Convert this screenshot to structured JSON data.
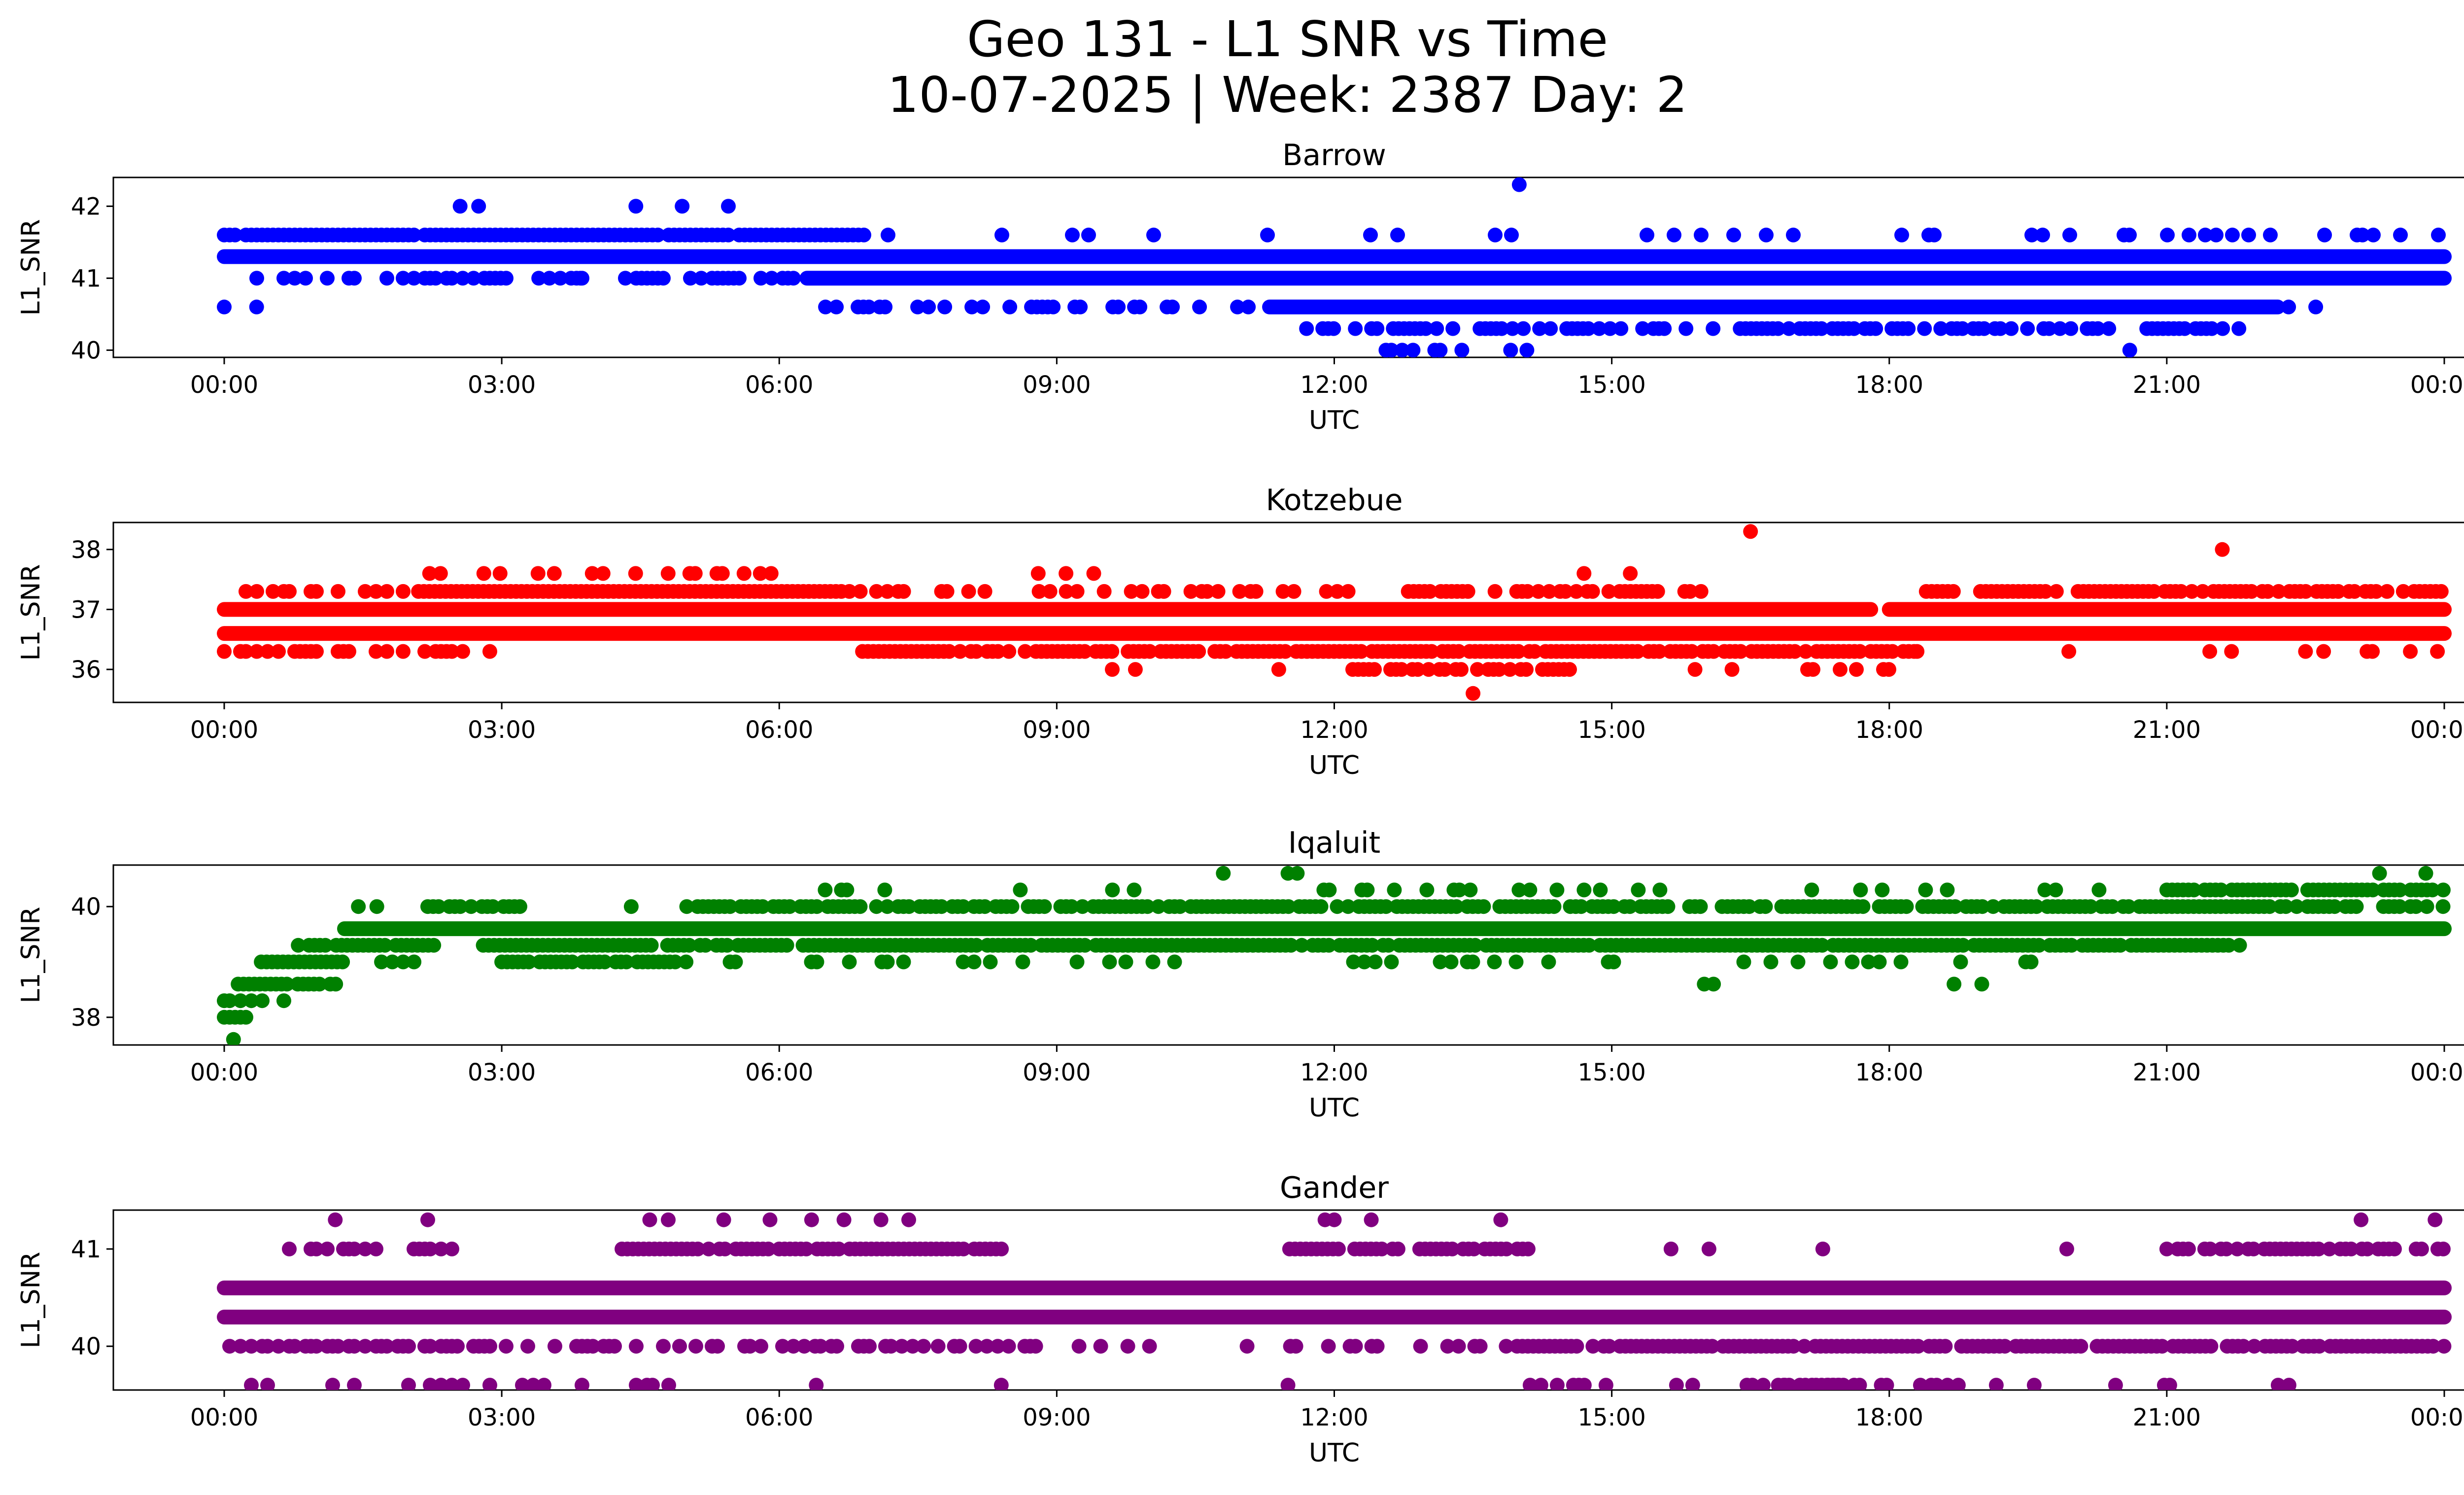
{
  "figure": {
    "title_line1": "Geo 131 - L1 SNR vs Time",
    "title_line2": "10-07-2025 | Week: 2387 Day: 2"
  },
  "chart_data": [
    {
      "type": "scatter",
      "title": "Barrow",
      "xlabel": "UTC",
      "ylabel": "L1_SNR",
      "color": "#0000ff",
      "ylim": [
        39.9,
        42.4
      ],
      "yticks": [
        40,
        41,
        42
      ],
      "xticks": [
        "00:00",
        "03:00",
        "06:00",
        "09:00",
        "12:00",
        "15:00",
        "18:00",
        "21:00",
        "00:00"
      ],
      "bands": [
        {
          "y": 41.3,
          "start_h": 0.0,
          "end_h": 24.0,
          "density": 1.0
        },
        {
          "y": 41.6,
          "start_h": 0.0,
          "end_h": 7.0,
          "density": 0.95
        },
        {
          "y": 41.6,
          "start_h": 7.0,
          "end_h": 24.0,
          "density": 0.12
        },
        {
          "y": 41.0,
          "start_h": 0.0,
          "end_h": 6.3,
          "density": 0.45
        },
        {
          "y": 41.0,
          "start_h": 6.3,
          "end_h": 24.0,
          "density": 1.0
        },
        {
          "y": 40.6,
          "start_h": 6.5,
          "end_h": 11.3,
          "density": 0.35
        },
        {
          "y": 40.6,
          "start_h": 11.3,
          "end_h": 22.2,
          "density": 1.0
        },
        {
          "y": 40.6,
          "start_h": 22.2,
          "end_h": 23.2,
          "density": 0.3
        },
        {
          "y": 40.3,
          "start_h": 11.7,
          "end_h": 21.8,
          "density": 0.55
        },
        {
          "y": 40.0,
          "start_h": 12.5,
          "end_h": 14.2,
          "density": 0.25
        }
      ],
      "points": [
        {
          "t": 0.0,
          "v": 40.6
        },
        {
          "t": 0.35,
          "v": 40.6
        },
        {
          "t": 2.55,
          "v": 42.0
        },
        {
          "t": 2.75,
          "v": 42.0
        },
        {
          "t": 4.45,
          "v": 42.0
        },
        {
          "t": 4.95,
          "v": 42.0
        },
        {
          "t": 5.45,
          "v": 42.0
        },
        {
          "t": 3.4,
          "v": 41.0
        },
        {
          "t": 3.85,
          "v": 41.0
        },
        {
          "t": 14.0,
          "v": 42.3
        },
        {
          "t": 20.6,
          "v": 40.0
        }
      ]
    },
    {
      "type": "scatter",
      "title": "Kotzebue",
      "xlabel": "UTC",
      "ylabel": "L1_SNR",
      "color": "#ff0000",
      "ylim": [
        35.45,
        38.45
      ],
      "yticks": [
        36,
        37,
        38
      ],
      "xticks": [
        "00:00",
        "03:00",
        "06:00",
        "09:00",
        "12:00",
        "15:00",
        "18:00",
        "21:00",
        "00:00"
      ],
      "bands": [
        {
          "y": 37.0,
          "start_h": 0.0,
          "end_h": 17.8,
          "density": 1.0
        },
        {
          "y": 37.0,
          "start_h": 18.0,
          "end_h": 24.0,
          "density": 1.0
        },
        {
          "y": 36.6,
          "start_h": 0.0,
          "end_h": 24.0,
          "density": 1.0
        },
        {
          "y": 36.3,
          "start_h": 0.0,
          "end_h": 2.9,
          "density": 0.55
        },
        {
          "y": 36.3,
          "start_h": 6.9,
          "end_h": 18.3,
          "density": 0.85
        },
        {
          "y": 36.3,
          "start_h": 18.3,
          "end_h": 24.0,
          "density": 0.08
        },
        {
          "y": 37.3,
          "start_h": 0.0,
          "end_h": 2.1,
          "density": 0.3
        },
        {
          "y": 37.3,
          "start_h": 2.1,
          "end_h": 6.7,
          "density": 0.95
        },
        {
          "y": 37.3,
          "start_h": 6.7,
          "end_h": 12.8,
          "density": 0.3
        },
        {
          "y": 37.3,
          "start_h": 12.8,
          "end_h": 16.0,
          "density": 0.7
        },
        {
          "y": 37.3,
          "start_h": 18.4,
          "end_h": 24.0,
          "density": 0.75
        },
        {
          "y": 36.0,
          "start_h": 12.2,
          "end_h": 14.6,
          "density": 0.55
        },
        {
          "y": 36.0,
          "start_h": 17.0,
          "end_h": 18.0,
          "density": 0.5
        },
        {
          "y": 37.6,
          "start_h": 1.4,
          "end_h": 6.1,
          "density": 0.15
        }
      ],
      "points": [
        {
          "t": 9.6,
          "v": 36.0
        },
        {
          "t": 9.85,
          "v": 36.0
        },
        {
          "t": 11.4,
          "v": 36.0
        },
        {
          "t": 15.9,
          "v": 36.0
        },
        {
          "t": 16.3,
          "v": 36.0
        },
        {
          "t": 8.8,
          "v": 37.6
        },
        {
          "t": 9.1,
          "v": 37.6
        },
        {
          "t": 9.4,
          "v": 37.6
        },
        {
          "t": 14.7,
          "v": 37.6
        },
        {
          "t": 15.2,
          "v": 37.6
        },
        {
          "t": 13.5,
          "v": 35.6
        },
        {
          "t": 16.5,
          "v": 38.3
        },
        {
          "t": 21.6,
          "v": 38.0
        },
        {
          "t": 21.7,
          "v": 36.3
        },
        {
          "t": 22.5,
          "v": 36.3
        }
      ]
    },
    {
      "type": "scatter",
      "title": "Iqaluit",
      "xlabel": "UTC",
      "ylabel": "L1_SNR",
      "color": "#008000",
      "ylim": [
        37.5,
        40.75
      ],
      "yticks": [
        38,
        40
      ],
      "xticks": [
        "00:00",
        "03:00",
        "06:00",
        "09:00",
        "12:00",
        "15:00",
        "18:00",
        "21:00",
        "00:00"
      ],
      "bands": [
        {
          "y": 38.0,
          "start_h": 0.0,
          "end_h": 0.3,
          "density": 0.9
        },
        {
          "y": 38.3,
          "start_h": 0.0,
          "end_h": 0.7,
          "density": 0.7
        },
        {
          "y": 38.6,
          "start_h": 0.15,
          "end_h": 1.3,
          "density": 0.9
        },
        {
          "y": 39.0,
          "start_h": 0.4,
          "end_h": 1.3,
          "density": 0.9
        },
        {
          "y": 39.3,
          "start_h": 0.8,
          "end_h": 2.3,
          "density": 0.9
        },
        {
          "y": 39.6,
          "start_h": 1.3,
          "end_h": 24.0,
          "density": 1.0
        },
        {
          "y": 39.3,
          "start_h": 2.8,
          "end_h": 21.8,
          "density": 0.9
        },
        {
          "y": 39.0,
          "start_h": 3.0,
          "end_h": 5.0,
          "density": 0.8
        },
        {
          "y": 39.0,
          "start_h": 5.0,
          "end_h": 20.0,
          "density": 0.12
        },
        {
          "y": 40.0,
          "start_h": 2.2,
          "end_h": 3.2,
          "density": 0.8
        },
        {
          "y": 40.0,
          "start_h": 5.0,
          "end_h": 24.0,
          "density": 0.85
        },
        {
          "y": 40.3,
          "start_h": 5.5,
          "end_h": 21.0,
          "density": 0.12
        },
        {
          "y": 40.3,
          "start_h": 21.0,
          "end_h": 24.0,
          "density": 0.9
        },
        {
          "y": 39.0,
          "start_h": 1.7,
          "end_h": 2.1,
          "density": 0.5
        }
      ],
      "points": [
        {
          "t": 0.1,
          "v": 37.6
        },
        {
          "t": 1.45,
          "v": 40.0
        },
        {
          "t": 1.65,
          "v": 40.0
        },
        {
          "t": 4.4,
          "v": 40.0
        },
        {
          "t": 10.8,
          "v": 40.6
        },
        {
          "t": 11.5,
          "v": 40.6
        },
        {
          "t": 11.6,
          "v": 40.6
        },
        {
          "t": 16.0,
          "v": 38.6
        },
        {
          "t": 16.1,
          "v": 38.6
        },
        {
          "t": 18.7,
          "v": 38.6
        },
        {
          "t": 19.0,
          "v": 38.6
        },
        {
          "t": 23.3,
          "v": 40.6
        },
        {
          "t": 23.8,
          "v": 40.6
        }
      ]
    },
    {
      "type": "scatter",
      "title": "Gander",
      "xlabel": "UTC",
      "ylabel": "L1_SNR",
      "color": "#800080",
      "ylim": [
        39.55,
        41.4
      ],
      "yticks": [
        40,
        41
      ],
      "xticks": [
        "00:00",
        "03:00",
        "06:00",
        "09:00",
        "12:00",
        "15:00",
        "18:00",
        "21:00",
        "00:00"
      ],
      "bands": [
        {
          "y": 40.6,
          "start_h": 0.0,
          "end_h": 24.0,
          "density": 1.0
        },
        {
          "y": 40.3,
          "start_h": 0.0,
          "end_h": 24.0,
          "density": 1.0
        },
        {
          "y": 40.0,
          "start_h": 0.0,
          "end_h": 7.6,
          "density": 0.5
        },
        {
          "y": 40.0,
          "start_h": 7.6,
          "end_h": 13.8,
          "density": 0.25
        },
        {
          "y": 40.0,
          "start_h": 13.8,
          "end_h": 24.0,
          "density": 0.9
        },
        {
          "y": 41.0,
          "start_h": 0.0,
          "end_h": 2.6,
          "density": 0.45
        },
        {
          "y": 41.0,
          "start_h": 4.3,
          "end_h": 8.5,
          "density": 0.9
        },
        {
          "y": 41.0,
          "start_h": 11.4,
          "end_h": 14.1,
          "density": 0.8
        },
        {
          "y": 41.0,
          "start_h": 21.0,
          "end_h": 24.0,
          "density": 0.7
        },
        {
          "y": 41.0,
          "start_h": 14.0,
          "end_h": 21.0,
          "density": 0.04
        },
        {
          "y": 39.6,
          "start_h": 0.0,
          "end_h": 4.9,
          "density": 0.15
        },
        {
          "y": 39.6,
          "start_h": 14.0,
          "end_h": 22.5,
          "density": 0.2
        },
        {
          "y": 39.6,
          "start_h": 16.8,
          "end_h": 18.0,
          "density": 0.7
        }
      ],
      "points": [
        {
          "t": 1.2,
          "v": 41.3
        },
        {
          "t": 2.2,
          "v": 41.3
        },
        {
          "t": 4.6,
          "v": 41.3
        },
        {
          "t": 4.8,
          "v": 41.3
        },
        {
          "t": 5.4,
          "v": 41.3
        },
        {
          "t": 5.9,
          "v": 41.3
        },
        {
          "t": 6.35,
          "v": 41.3
        },
        {
          "t": 6.7,
          "v": 41.3
        },
        {
          "t": 7.1,
          "v": 41.3
        },
        {
          "t": 7.4,
          "v": 41.3
        },
        {
          "t": 11.9,
          "v": 41.3
        },
        {
          "t": 12.0,
          "v": 41.3
        },
        {
          "t": 12.4,
          "v": 41.3
        },
        {
          "t": 13.8,
          "v": 41.3
        },
        {
          "t": 23.1,
          "v": 41.3
        },
        {
          "t": 23.9,
          "v": 41.3
        },
        {
          "t": 6.4,
          "v": 39.6
        },
        {
          "t": 8.4,
          "v": 39.6
        },
        {
          "t": 11.5,
          "v": 39.6
        }
      ]
    }
  ]
}
